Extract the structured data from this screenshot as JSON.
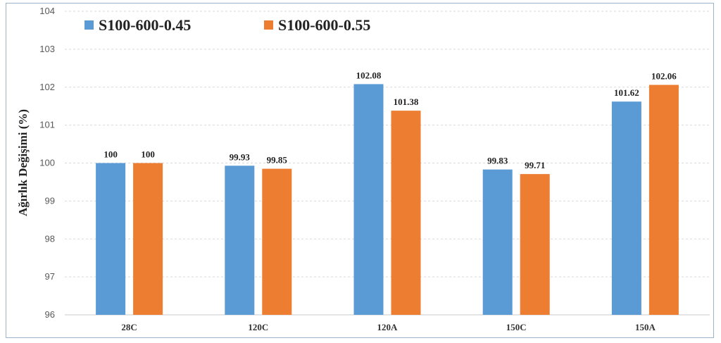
{
  "chart_data": {
    "type": "bar",
    "categories": [
      "28C",
      "120C",
      "120A",
      "150C",
      "150A"
    ],
    "series": [
      {
        "name": "S100-600-0.45",
        "color": "#5b9bd5",
        "values": [
          100,
          99.93,
          102.08,
          99.83,
          101.62
        ]
      },
      {
        "name": "S100-600-0.55",
        "color": "#ed7d31",
        "values": [
          100,
          99.85,
          101.38,
          99.71,
          102.06
        ]
      }
    ],
    "data_labels": [
      [
        "100",
        "99.93",
        "102.08",
        "99.83",
        "101.62"
      ],
      [
        "100",
        "99.85",
        "101.38",
        "99.71",
        "102.06"
      ]
    ],
    "ylabel": "Ağırlık Değişimi (%)",
    "xlabel": "",
    "ylim": [
      96,
      104
    ],
    "yticks": [
      96,
      97,
      98,
      99,
      100,
      101,
      102,
      103,
      104
    ],
    "grid": true,
    "legend_position": "top-left"
  }
}
